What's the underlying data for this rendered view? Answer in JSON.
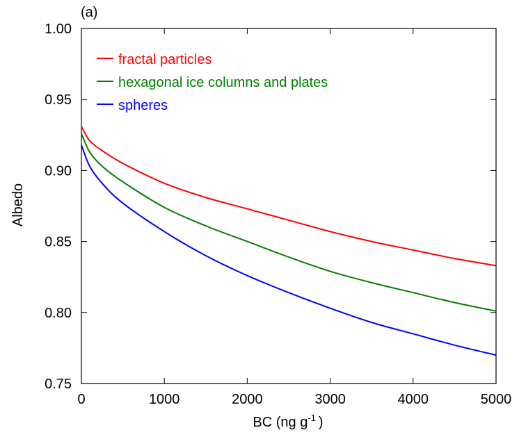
{
  "chart_data": {
    "type": "line",
    "panel_label": "(a)",
    "xlabel": "BC (ng g",
    "xlabel_sup": "-1",
    "xlabel_close": ")",
    "ylabel": "Albedo",
    "xlim": [
      0,
      5000
    ],
    "ylim": [
      0.75,
      1.0
    ],
    "xticks": [
      0,
      1000,
      2000,
      3000,
      4000,
      5000
    ],
    "xtick_labels": [
      "0",
      "1000",
      "2000",
      "3000",
      "4000",
      "5000"
    ],
    "yticks": [
      0.75,
      0.8,
      0.85,
      0.9,
      0.95,
      1.0
    ],
    "ytick_labels": [
      "0.75",
      "0.80",
      "0.85",
      "0.90",
      "0.95",
      "1.00"
    ],
    "grid": false,
    "legend_position": "top-left",
    "x": [
      0,
      100,
      250,
      500,
      1000,
      1500,
      2000,
      2500,
      3000,
      3500,
      4000,
      4500,
      5000
    ],
    "series": [
      {
        "name": "fractal particles",
        "color": "#ff0000",
        "values": [
          0.931,
          0.921,
          0.914,
          0.905,
          0.891,
          0.881,
          0.873,
          0.865,
          0.857,
          0.85,
          0.844,
          0.838,
          0.833
        ]
      },
      {
        "name": "hexagonal ice columns and plates",
        "color": "#008000",
        "values": [
          0.926,
          0.913,
          0.903,
          0.892,
          0.874,
          0.861,
          0.85,
          0.839,
          0.829,
          0.821,
          0.814,
          0.807,
          0.801
        ]
      },
      {
        "name": "spheres",
        "color": "#0000ff",
        "values": [
          0.918,
          0.903,
          0.891,
          0.877,
          0.857,
          0.84,
          0.826,
          0.814,
          0.803,
          0.793,
          0.785,
          0.777,
          0.77
        ]
      }
    ]
  }
}
